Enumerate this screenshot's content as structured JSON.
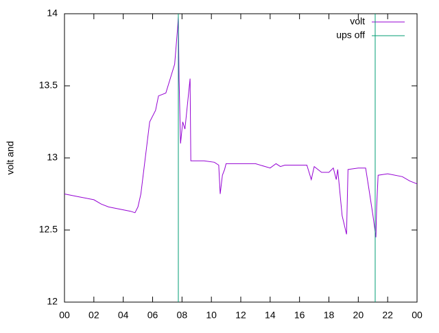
{
  "chart_data": {
    "type": "line",
    "ylabel": "volt and",
    "xlim": [
      0,
      24
    ],
    "ylim": [
      12,
      14
    ],
    "xticks": [
      {
        "value": 0,
        "label": "00"
      },
      {
        "value": 2,
        "label": "02"
      },
      {
        "value": 4,
        "label": "04"
      },
      {
        "value": 6,
        "label": "06"
      },
      {
        "value": 8,
        "label": "08"
      },
      10,
      12,
      14,
      16,
      18,
      20,
      22,
      {
        "value": 24,
        "label": "00"
      }
    ],
    "yticks": [
      12,
      12.5,
      13,
      13.5,
      14
    ],
    "legend": "top-right",
    "series": [
      {
        "name": "volt",
        "color": "#9400d3",
        "x": [
          0,
          1,
          2,
          2.5,
          3,
          4,
          4.5,
          4.8,
          5.0,
          5.2,
          5.5,
          5.8,
          6.2,
          6.4,
          6.9,
          7.2,
          7.5,
          7.7,
          7.75,
          7.8,
          7.9,
          8.05,
          8.2,
          8.4,
          8.55,
          8.6,
          9.5,
          10.2,
          10.5,
          10.6,
          10.75,
          10.9,
          11.0,
          12,
          13,
          14,
          14.4,
          14.7,
          15,
          16.5,
          16.8,
          17,
          17.5,
          18,
          18.3,
          18.5,
          18.6,
          18.9,
          19.2,
          19.3,
          20,
          20.5,
          20.7,
          21.0,
          21.2,
          21.25,
          21.35,
          22,
          23,
          23.5,
          24
        ],
        "values": [
          12.75,
          12.73,
          12.71,
          12.68,
          12.66,
          12.64,
          12.63,
          12.62,
          12.66,
          12.75,
          13.0,
          13.25,
          13.33,
          13.43,
          13.45,
          13.55,
          13.65,
          13.9,
          13.98,
          13.55,
          13.1,
          13.25,
          13.2,
          13.4,
          13.55,
          12.98,
          12.98,
          12.97,
          12.95,
          12.75,
          12.88,
          12.92,
          12.96,
          12.96,
          12.96,
          12.93,
          12.96,
          12.94,
          12.95,
          12.95,
          12.85,
          12.94,
          12.9,
          12.9,
          12.93,
          12.85,
          12.92,
          12.6,
          12.47,
          12.92,
          12.93,
          12.93,
          12.8,
          12.6,
          12.45,
          12.66,
          12.88,
          12.89,
          12.87,
          12.84,
          12.82
        ]
      },
      {
        "name": "ups off",
        "color": "#009e73",
        "x": [
          7.75,
          7.75,
          7.75,
          21.15,
          21.15
        ],
        "values": [
          12,
          14,
          null,
          12,
          14
        ]
      }
    ]
  }
}
